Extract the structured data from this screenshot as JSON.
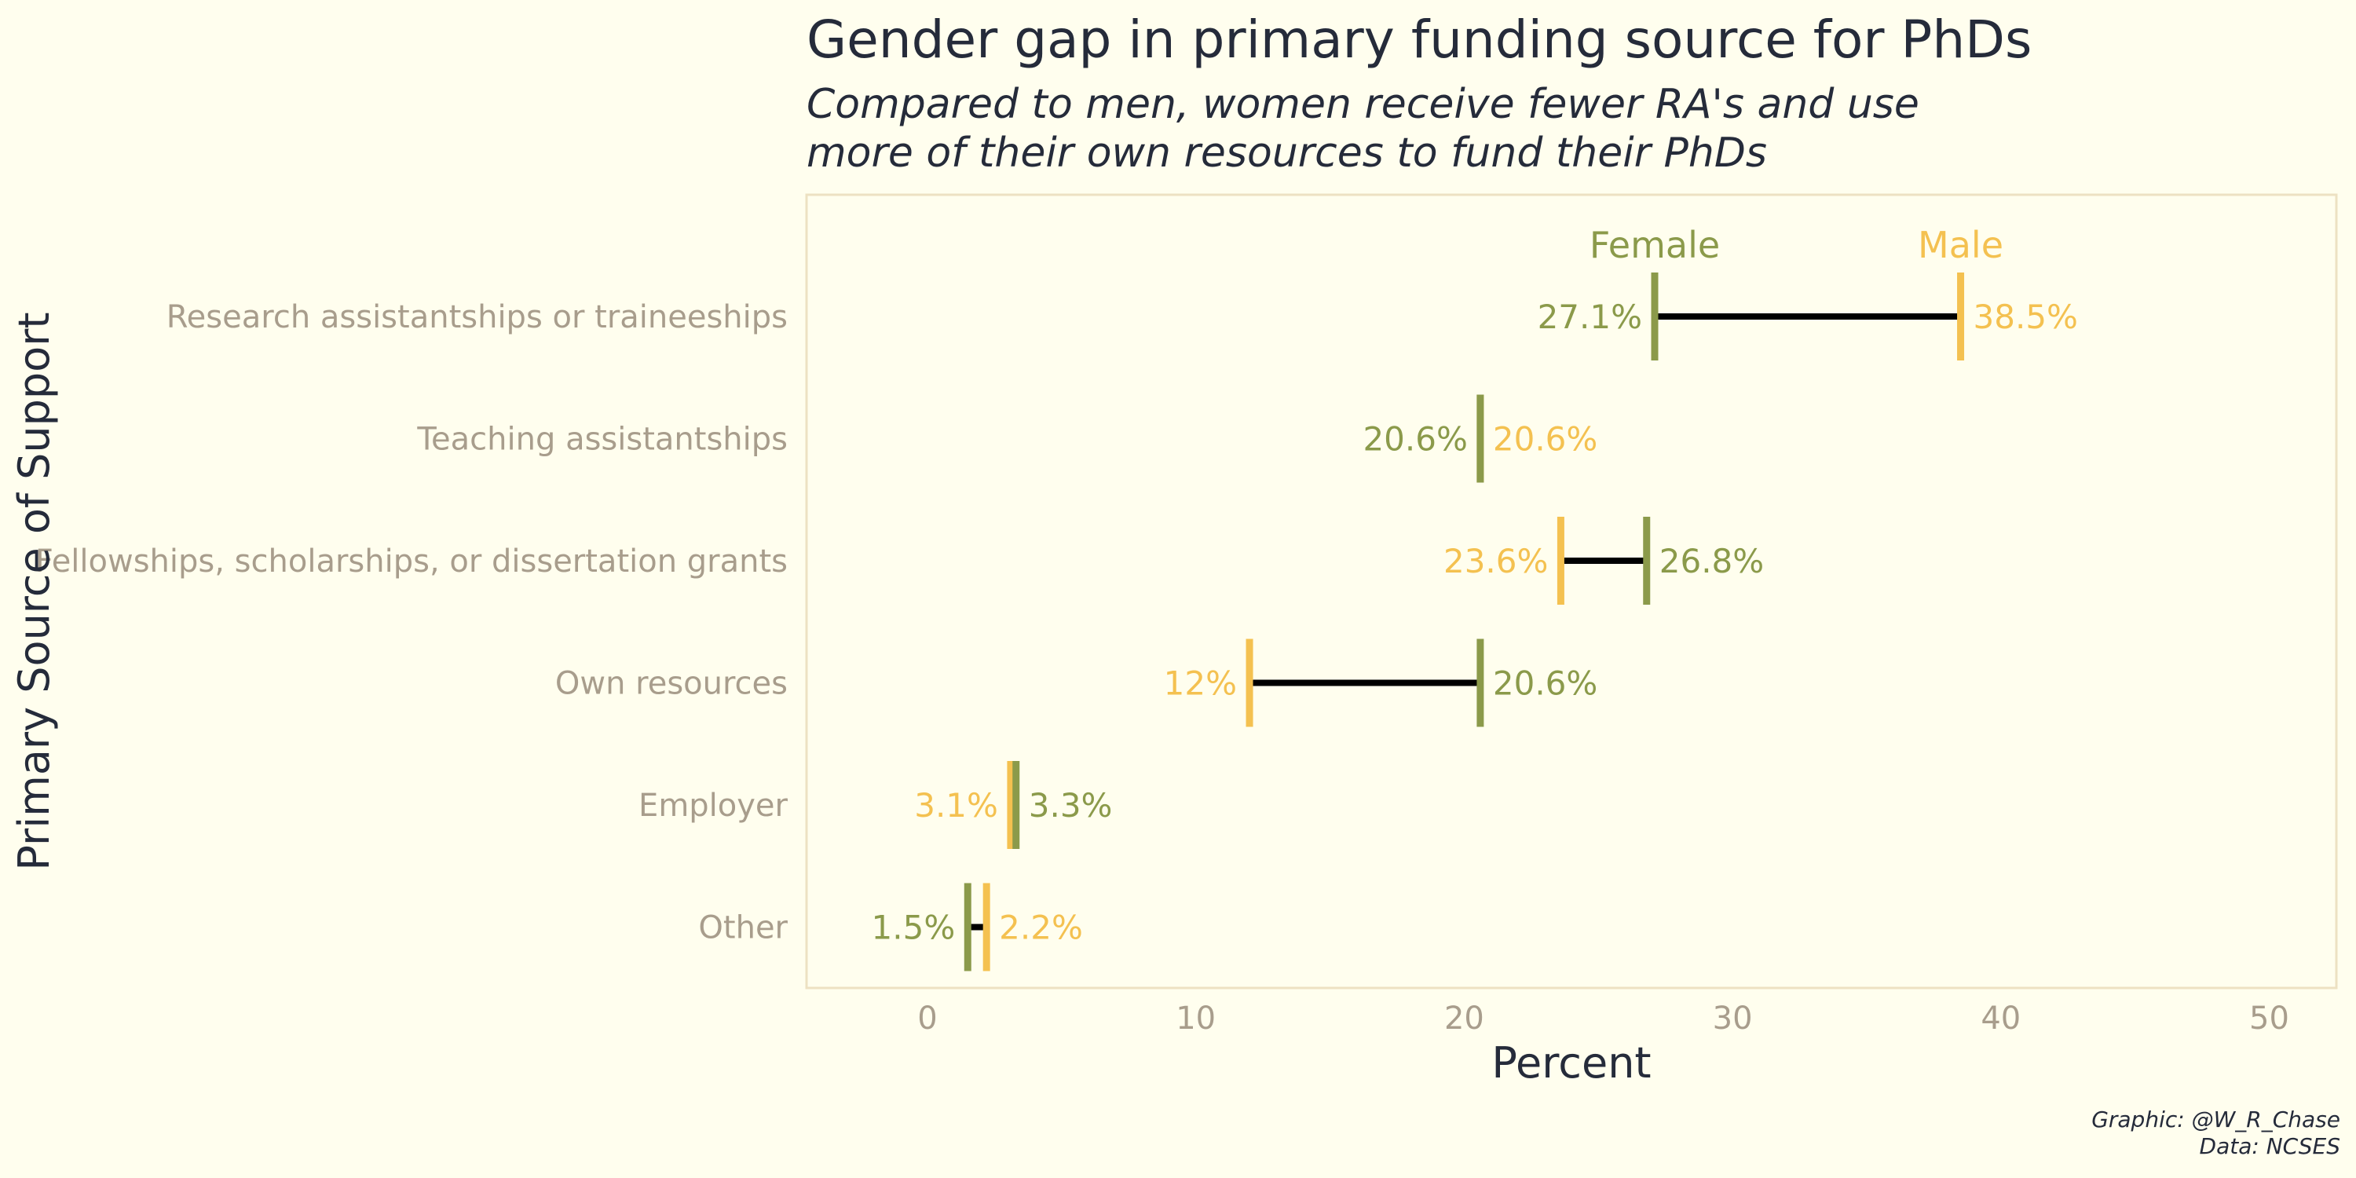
{
  "colors": {
    "background": "#fffeee",
    "female": "#8b9a4a",
    "male": "#f4c150",
    "connector": "#000000",
    "panel_border": "#ede1c2",
    "category_text": "#a89d8c",
    "title_text": "#252b3a"
  },
  "caption": {
    "line1": "Graphic: @W_R_Chase",
    "line2": "Data: NCSES"
  },
  "chart_data": {
    "type": "dumbbell",
    "title": "Gender gap in primary funding source for PhDs",
    "subtitle_lines": [
      "Compared to men, women receive fewer RA's and use",
      "more of their own resources to fund their PhDs"
    ],
    "xlabel": "Percent",
    "ylabel": "Primary Source of Support",
    "xlim": [
      0,
      50
    ],
    "xticks": [
      0,
      10,
      20,
      30,
      40,
      50
    ],
    "grid": false,
    "legend_placement": "above-top-row",
    "series": [
      {
        "name": "Female",
        "key": "female"
      },
      {
        "name": "Male",
        "key": "male"
      }
    ],
    "categories": [
      "Research assistantships or traineeships",
      "Teaching assistantships",
      "Fellowships, scholarships, or dissertation grants",
      "Own resources",
      "Employer",
      "Other"
    ],
    "rows": [
      {
        "category": "Research assistantships or traineeships",
        "female": 27.1,
        "male": 38.5,
        "female_label": "27.1%",
        "male_label": "38.5%"
      },
      {
        "category": "Teaching assistantships",
        "female": 20.6,
        "male": 20.6,
        "female_label": "20.6%",
        "male_label": "20.6%"
      },
      {
        "category": "Fellowships, scholarships, or dissertation grants",
        "female": 26.8,
        "male": 23.6,
        "female_label": "26.8%",
        "male_label": "23.6%"
      },
      {
        "category": "Own resources",
        "female": 20.6,
        "male": 12,
        "female_label": "20.6%",
        "male_label": "12%"
      },
      {
        "category": "Employer",
        "female": 3.3,
        "male": 3.1,
        "female_label": "3.3%",
        "male_label": "3.1%"
      },
      {
        "category": "Other",
        "female": 1.5,
        "male": 2.2,
        "female_label": "1.5%",
        "male_label": "2.2%"
      }
    ]
  }
}
